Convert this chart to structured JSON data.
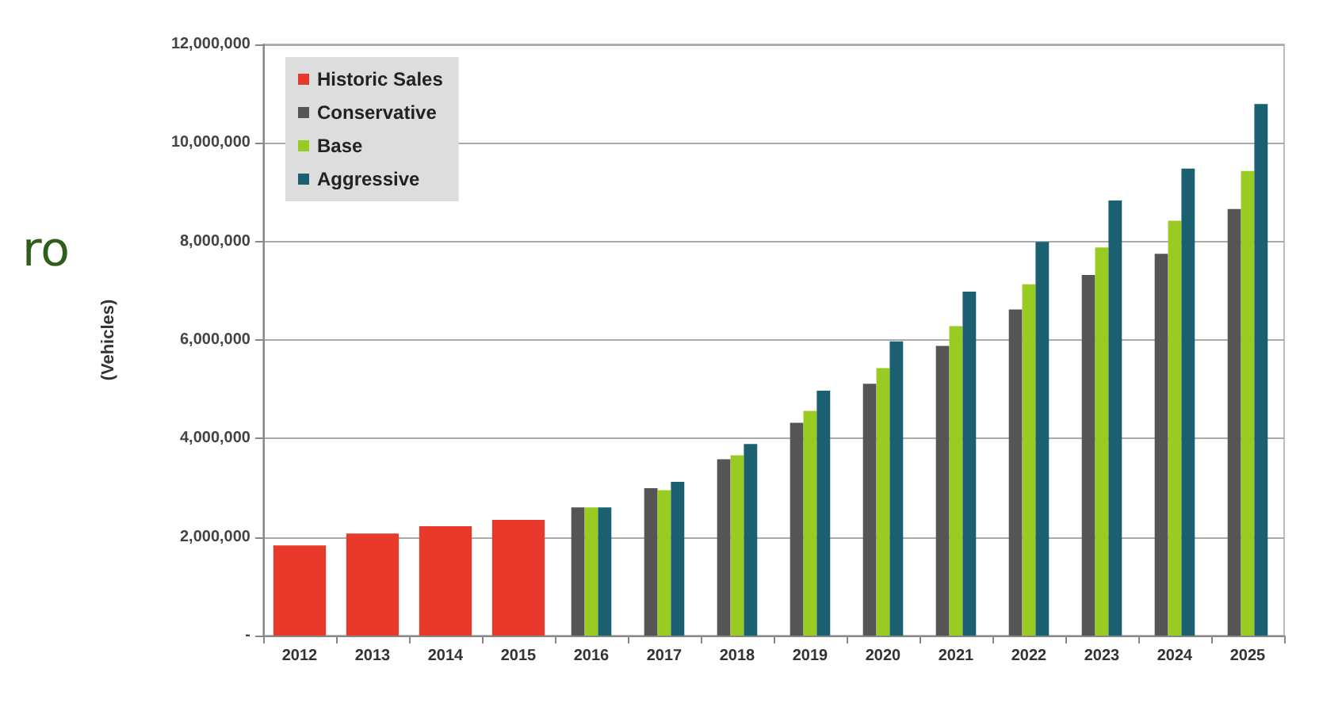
{
  "chart_data": {
    "type": "bar",
    "ylabel": "(Vehicles)",
    "categories": [
      "2012",
      "2013",
      "2014",
      "2015",
      "2016",
      "2017",
      "2018",
      "2019",
      "2020",
      "2021",
      "2022",
      "2023",
      "2024",
      "2025"
    ],
    "series": [
      {
        "name": "Historic Sales",
        "color": "#e8392a",
        "values": [
          1830000,
          2070000,
          2220000,
          2350000,
          null,
          null,
          null,
          null,
          null,
          null,
          null,
          null,
          null,
          null
        ]
      },
      {
        "name": "Conservative",
        "color": "#555555",
        "values": [
          null,
          null,
          null,
          null,
          2600000,
          2990000,
          3580000,
          4320000,
          5110000,
          5880000,
          6620000,
          7320000,
          7750000,
          8660000
        ]
      },
      {
        "name": "Base",
        "color": "#99cc22",
        "values": [
          null,
          null,
          null,
          null,
          2600000,
          2950000,
          3660000,
          4560000,
          5430000,
          6280000,
          7130000,
          7880000,
          8420000,
          9430000
        ]
      },
      {
        "name": "Aggressive",
        "color": "#1a6070",
        "values": [
          null,
          null,
          null,
          null,
          2600000,
          3120000,
          3890000,
          4970000,
          5970000,
          6980000,
          7990000,
          8830000,
          9480000,
          10790000
        ]
      }
    ],
    "ylim": [
      0,
      12000000
    ],
    "yticks": [
      {
        "value": 0,
        "label": "-"
      },
      {
        "value": 2000000,
        "label": "2,000,000"
      },
      {
        "value": 4000000,
        "label": "4,000,000"
      },
      {
        "value": 6000000,
        "label": "6,000,000"
      },
      {
        "value": 8000000,
        "label": "8,000,000"
      },
      {
        "value": 10000000,
        "label": "10,000,000"
      },
      {
        "value": 12000000,
        "label": "12,000,000"
      }
    ],
    "grid": "y",
    "legend": "top left",
    "annotations": [
      "ro"
    ]
  }
}
